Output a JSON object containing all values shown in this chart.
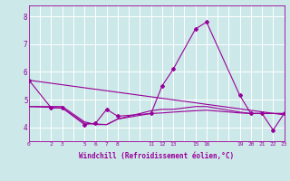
{
  "background_color": "#cce8e8",
  "line_color": "#990099",
  "grid_color": "#ffffff",
  "xlabel": "Windchill (Refroidissement éolien,°C)",
  "ylim": [
    3.5,
    8.4
  ],
  "xlim": [
    0,
    23
  ],
  "yticks": [
    4,
    5,
    6,
    7,
    8
  ],
  "xtick_values": [
    0,
    2,
    3,
    5,
    6,
    7,
    8,
    11,
    12,
    13,
    15,
    16,
    19,
    20,
    21,
    22,
    23
  ],
  "xtick_labels": [
    "0",
    "2",
    "3",
    "5",
    "6",
    "7",
    "8",
    "11",
    "12",
    "13",
    "15",
    "16",
    "19",
    "20",
    "21",
    "22",
    "23"
  ],
  "grid_xticks": [
    0,
    1,
    2,
    3,
    4,
    5,
    6,
    7,
    8,
    9,
    10,
    11,
    12,
    13,
    14,
    15,
    16,
    17,
    18,
    19,
    20,
    21,
    22,
    23
  ],
  "line1_x": [
    0,
    2,
    3,
    5,
    6,
    7,
    8,
    11,
    12,
    13,
    15,
    16,
    19,
    20,
    21,
    22,
    23
  ],
  "line1_y": [
    5.7,
    4.7,
    4.7,
    4.1,
    4.15,
    4.65,
    4.4,
    4.5,
    5.5,
    6.1,
    7.55,
    7.8,
    5.15,
    4.5,
    4.5,
    3.9,
    4.5
  ],
  "line2_x": [
    0,
    23
  ],
  "line2_y": [
    5.7,
    4.45
  ],
  "line3_x": [
    0,
    2,
    3,
    5,
    6,
    7,
    8,
    11,
    12,
    13,
    15,
    16,
    19,
    20,
    21,
    22,
    23
  ],
  "line3_y": [
    4.75,
    4.75,
    4.75,
    4.2,
    4.1,
    4.1,
    4.3,
    4.6,
    4.65,
    4.65,
    4.75,
    4.75,
    4.55,
    4.5,
    4.5,
    4.5,
    4.5
  ],
  "line4_x": [
    0,
    2,
    3,
    5,
    6,
    7,
    8,
    11,
    12,
    13,
    15,
    16,
    19,
    20,
    21,
    22,
    23
  ],
  "line4_y": [
    4.75,
    4.72,
    4.7,
    4.15,
    4.12,
    4.1,
    4.3,
    4.5,
    4.52,
    4.55,
    4.6,
    4.62,
    4.52,
    4.5,
    4.5,
    4.5,
    4.5
  ]
}
